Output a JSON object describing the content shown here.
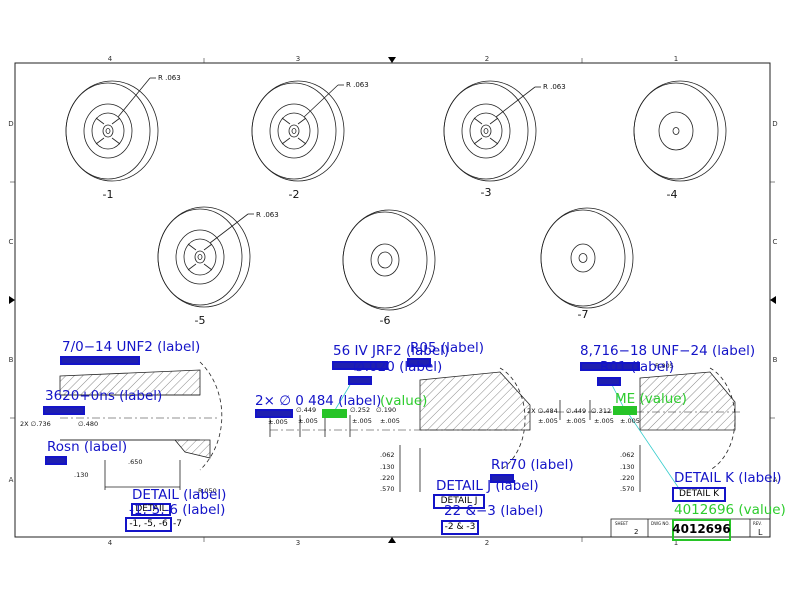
{
  "border": {
    "top_zones": [
      "4",
      "3",
      "2",
      "1"
    ],
    "bottom_zones": [
      "4",
      "3",
      "2",
      "1"
    ],
    "side_zones": [
      "D",
      "C",
      "B",
      "A"
    ]
  },
  "wheels": [
    {
      "label": "-1",
      "radius": "R .063"
    },
    {
      "label": "-2",
      "radius": "R .063"
    },
    {
      "label": "-3",
      "radius": "R .063"
    },
    {
      "label": "-4"
    },
    {
      "label": "-5",
      "radius": "R .063"
    },
    {
      "label": "-6"
    },
    {
      "label": "-7"
    }
  ],
  "left_section": {
    "dims": [
      "2X ∅.736",
      "∅.480",
      ".650",
      ".130",
      "R.050"
    ]
  },
  "detail_j": {
    "dims": [
      "∅.449",
      "∅.252",
      "∅.190",
      "±.005",
      "±.005",
      "±.005",
      "±.005",
      ".062",
      ".130",
      ".220",
      ".570"
    ],
    "diam_tol": "±.005"
  },
  "detail_k": {
    "dims": [
      "2X ∅.484",
      "∅.449",
      "∅.312",
      "±.005",
      "±.005",
      "±.005",
      "±.005",
      ".062",
      ".130",
      ".220",
      ".570"
    ],
    "r": "R.005"
  },
  "title_block": {
    "sheet_label": "SHEET",
    "sheet": "2",
    "dwg_label": "DWG NO.",
    "rev_label": "REV.",
    "rev": "L"
  },
  "annotations": {
    "thread_left": "7/0−14 UNF2 (label)",
    "tol_left": "3620+0ns (label)",
    "rosn": "Rosn (label)",
    "detail_left": "DETAIL (label)",
    "detail_left_box": "DETAIL",
    "dash_left": "-1,-5,-6 (label)",
    "dash_left_box": "-1, -5, -6",
    "dash_left_suffix": "-7",
    "thread_mid": "56 IV JRF2 (label)",
    "r05": "R05 (label)",
    "q020": "∅.020 (label)",
    "note_2x": "2× ∅ 0 484 (label)",
    "value_mid": "(value)",
    "rn70": "Rn70 (label)",
    "detail_j": "DETAIL J (label)",
    "detail_j_box": "DETAIL J",
    "dash_mid": "22 &−3 (label)",
    "dash_mid_box": "-2 & -3",
    "thread_right": "8,716−18 UNF−24 (label)",
    "r01": "R01 (label)",
    "value_right": "ME (value)",
    "detail_k": "DETAIL K (label)",
    "detail_k_box": "DETAIL K",
    "dwg_value_text": "4012696 (value)",
    "dwg_no": "4012696"
  }
}
